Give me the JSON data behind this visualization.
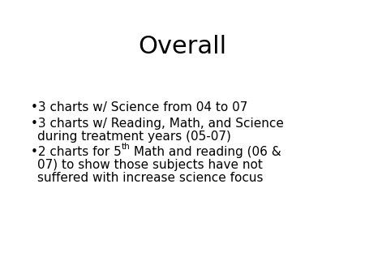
{
  "title": "Overall",
  "title_fontsize": 22,
  "background_color": "#ffffff",
  "text_color": "#000000",
  "body_fontsize": 11,
  "super_fontsize": 7.5,
  "bullet_char": "•",
  "line1": "3 charts w/ Science from 04 to 07",
  "line2a": "3 charts w/ Reading, Math, and Science",
  "line2b": "during treatment years (05-07)",
  "line3_pre": "2 charts for 5",
  "line3_super": "th",
  "line3_post": " Math and reading (06 &",
  "line3b": "07) to show those subjects have not",
  "line3c": "suffered with increase science focus"
}
